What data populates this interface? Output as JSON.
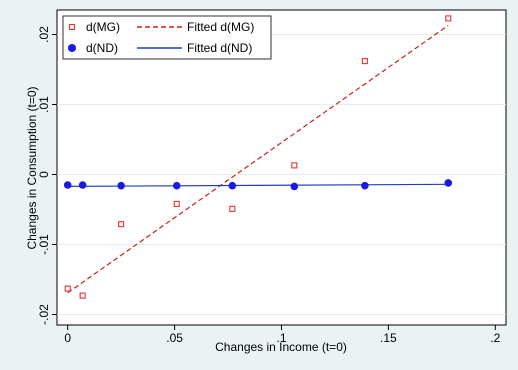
{
  "chart_data": {
    "type": "scatter",
    "xlabel": "Changes in Income (t=0)",
    "ylabel": "Changes in Consumption (t=0)",
    "xlim": [
      -0.005,
      0.205
    ],
    "ylim": [
      -0.0215,
      0.0235
    ],
    "xticks": [
      0,
      0.05,
      0.1,
      0.15,
      0.2
    ],
    "xtick_labels": [
      "0",
      ".05",
      ".1",
      ".15",
      ".2"
    ],
    "yticks": [
      -0.02,
      -0.01,
      0,
      0.01,
      0.02
    ],
    "ytick_labels": [
      "-.02",
      "-.01",
      "0",
      ".01",
      ".02"
    ],
    "grid": "horizontal",
    "legend_position": "top-left",
    "series": [
      {
        "name": "d(MG)",
        "kind": "scatter",
        "marker": "hollow-square",
        "color": "#e8312f",
        "x": [
          0.0,
          0.007,
          0.025,
          0.051,
          0.077,
          0.106,
          0.139,
          0.178
        ],
        "y": [
          -0.0163,
          -0.0173,
          -0.0071,
          -0.0042,
          -0.0049,
          0.0013,
          0.0162,
          0.0223
        ]
      },
      {
        "name": "Fitted d(MG)",
        "kind": "line",
        "style": "dashed",
        "color": "#c8201e",
        "x": [
          0.0,
          0.178
        ],
        "y": [
          -0.0169,
          0.0213
        ]
      },
      {
        "name": "d(ND)",
        "kind": "scatter",
        "marker": "filled-circle",
        "color": "#1a1ae6",
        "x": [
          0.0,
          0.007,
          0.025,
          0.051,
          0.077,
          0.106,
          0.139,
          0.178
        ],
        "y": [
          -0.0015,
          -0.0015,
          -0.0016,
          -0.0016,
          -0.0016,
          -0.0017,
          -0.0016,
          -0.0012
        ]
      },
      {
        "name": "Fitted d(ND)",
        "kind": "line",
        "style": "solid",
        "color": "#1f3fc0",
        "x": [
          0.0,
          0.178
        ],
        "y": [
          -0.0017,
          -0.0014
        ]
      }
    ]
  }
}
